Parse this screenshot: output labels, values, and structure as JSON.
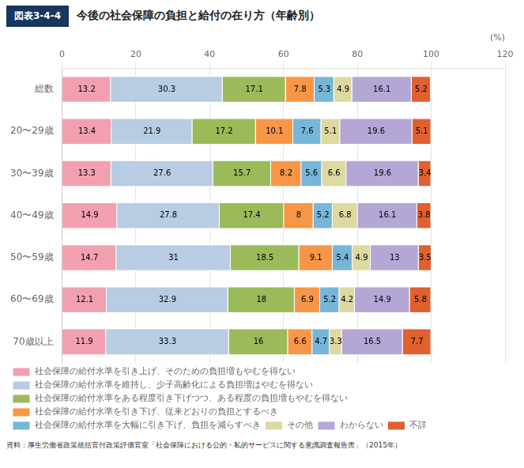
{
  "chart_data": {
    "type": "bar",
    "orientation": "horizontal",
    "stacked": true,
    "data_labels": true,
    "grid": true,
    "legend": "bottom",
    "title": "今後の社会保障の負担と給付の在り方（年齢別）",
    "annotations": [
      "図表3-4-4",
      "資料：厚生労働省政策統括官付政策評価官室「社会保障における公的・私的サービスに関する意識調査報告書」（2015年）"
    ],
    "xlabel": "(%)",
    "categories": [
      "総数",
      "20〜29歳",
      "30〜39歳",
      "40〜49歳",
      "50〜59歳",
      "60〜69歳",
      "70歳以上"
    ],
    "series": [
      {
        "name": "社会保障の給付水準を引き上げ、そのための負担増もやむを得ない",
        "color": "#f2a0b0",
        "values": [
          13.2,
          13.4,
          13.3,
          14.9,
          14.7,
          12.1,
          11.9
        ]
      },
      {
        "name": "社会保障の給付水準を維持し、少子高齢化による負担増はやむを得ない",
        "color": "#b8cce4",
        "values": [
          30.3,
          21.9,
          27.6,
          27.8,
          31.0,
          32.9,
          33.3
        ]
      },
      {
        "name": "社会保障の給付水準をある程度引き下げつつ、ある程度の負担増もやむを得ない",
        "color": "#9bba59",
        "values": [
          17.1,
          17.2,
          15.7,
          17.4,
          18.5,
          18.0,
          16.0
        ]
      },
      {
        "name": "社会保障の給付水準を引き下げ、従来どおりの負担とするべき",
        "color": "#f79646",
        "values": [
          7.8,
          10.1,
          8.2,
          8.0,
          9.1,
          6.9,
          6.6
        ]
      },
      {
        "name": "社会保障の給付水準を大幅に引き下げ、負担を減らすべき",
        "color": "#77b6d8",
        "values": [
          5.3,
          7.6,
          5.6,
          5.2,
          5.4,
          5.2,
          4.7
        ]
      },
      {
        "name": "その他",
        "color": "#ddd9a0",
        "values": [
          4.9,
          5.1,
          6.6,
          6.8,
          4.9,
          4.2,
          3.3
        ]
      },
      {
        "name": "わからない",
        "color": "#b4a7d6",
        "values": [
          16.1,
          19.6,
          19.6,
          16.1,
          13.0,
          14.9,
          16.5
        ]
      },
      {
        "name": "不詳",
        "color": "#e06030",
        "values": [
          5.2,
          5.1,
          3.4,
          3.8,
          3.5,
          5.8,
          7.7
        ]
      }
    ],
    "xlim": [
      0,
      120
    ],
    "xticks": [
      0,
      20,
      40,
      60,
      80,
      100,
      120
    ]
  }
}
